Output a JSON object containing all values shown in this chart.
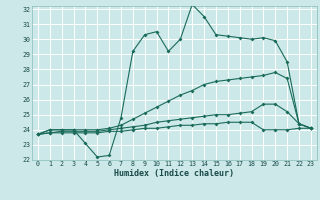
{
  "xlabel": "Humidex (Indice chaleur)",
  "xlim": [
    -0.5,
    23.5
  ],
  "ylim": [
    22,
    32.2
  ],
  "yticks": [
    22,
    23,
    24,
    25,
    26,
    27,
    28,
    29,
    30,
    31,
    32
  ],
  "xticks": [
    0,
    1,
    2,
    3,
    4,
    5,
    6,
    7,
    8,
    9,
    10,
    11,
    12,
    13,
    14,
    15,
    16,
    17,
    18,
    19,
    20,
    21,
    22,
    23
  ],
  "bg_color": "#cce8e8",
  "grid_color": "#ffffff",
  "line_color": "#1a6b5a",
  "line1_x": [
    0,
    1,
    2,
    3,
    4,
    5,
    6,
    7,
    8,
    9,
    10,
    11,
    12,
    13,
    14,
    15,
    16,
    17,
    18,
    19,
    20,
    21,
    22,
    23
  ],
  "line1_y": [
    23.7,
    24.0,
    24.0,
    24.0,
    23.1,
    22.2,
    22.3,
    24.8,
    29.2,
    30.3,
    30.5,
    29.2,
    30.0,
    32.3,
    31.5,
    30.3,
    30.2,
    30.1,
    30.0,
    30.1,
    29.9,
    28.5,
    24.4,
    24.1
  ],
  "line2_x": [
    0,
    1,
    2,
    3,
    4,
    5,
    6,
    7,
    8,
    9,
    10,
    11,
    12,
    13,
    14,
    15,
    16,
    17,
    18,
    19,
    20,
    21,
    22,
    23
  ],
  "line2_y": [
    23.7,
    24.0,
    24.0,
    24.0,
    24.0,
    24.0,
    24.1,
    24.3,
    24.7,
    25.1,
    25.5,
    25.9,
    26.3,
    26.6,
    27.0,
    27.2,
    27.3,
    27.4,
    27.5,
    27.6,
    27.8,
    27.4,
    24.4,
    24.1
  ],
  "line3_x": [
    0,
    1,
    2,
    3,
    4,
    5,
    6,
    7,
    8,
    9,
    10,
    11,
    12,
    13,
    14,
    15,
    16,
    17,
    18,
    19,
    20,
    21,
    22,
    23
  ],
  "line3_y": [
    23.7,
    23.8,
    23.9,
    23.9,
    23.9,
    23.9,
    24.0,
    24.1,
    24.2,
    24.3,
    24.5,
    24.6,
    24.7,
    24.8,
    24.9,
    25.0,
    25.0,
    25.1,
    25.2,
    25.7,
    25.7,
    25.2,
    24.4,
    24.1
  ],
  "line4_x": [
    0,
    1,
    2,
    3,
    4,
    5,
    6,
    7,
    8,
    9,
    10,
    11,
    12,
    13,
    14,
    15,
    16,
    17,
    18,
    19,
    20,
    21,
    22,
    23
  ],
  "line4_y": [
    23.7,
    23.8,
    23.8,
    23.8,
    23.8,
    23.8,
    23.9,
    23.9,
    24.0,
    24.1,
    24.1,
    24.2,
    24.3,
    24.3,
    24.4,
    24.4,
    24.5,
    24.5,
    24.5,
    24.0,
    24.0,
    24.0,
    24.1,
    24.1
  ]
}
